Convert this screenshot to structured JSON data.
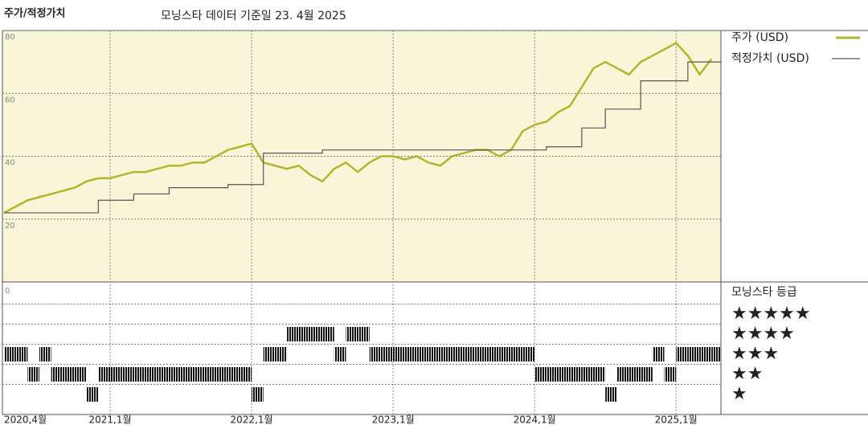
{
  "chart_data": [
    {
      "type": "line",
      "title": "주가/적정가치",
      "subtitle": "모닝스타 데이터 기준일 23. 4월 2025",
      "x": [
        "2020-04",
        "2020-05",
        "2020-06",
        "2020-07",
        "2020-08",
        "2020-09",
        "2020-10",
        "2020-11",
        "2020-12",
        "2021-01",
        "2021-02",
        "2021-03",
        "2021-04",
        "2021-05",
        "2021-06",
        "2021-07",
        "2021-08",
        "2021-09",
        "2021-10",
        "2021-11",
        "2021-12",
        "2022-01",
        "2022-02",
        "2022-03",
        "2022-04",
        "2022-05",
        "2022-06",
        "2022-07",
        "2022-08",
        "2022-09",
        "2022-10",
        "2022-11",
        "2022-12",
        "2023-01",
        "2023-02",
        "2023-03",
        "2023-04",
        "2023-05",
        "2023-06",
        "2023-07",
        "2023-08",
        "2023-09",
        "2023-10",
        "2023-11",
        "2023-12",
        "2024-01",
        "2024-02",
        "2024-03",
        "2024-04",
        "2024-05",
        "2024-06",
        "2024-07",
        "2024-08",
        "2024-09",
        "2024-10",
        "2024-11",
        "2024-12",
        "2025-01",
        "2025-02",
        "2025-03",
        "2025-04"
      ],
      "series": [
        {
          "name": "주가 (USD)",
          "color": "#b3b62c",
          "values": [
            22,
            24,
            26,
            27,
            28,
            29,
            30,
            32,
            33,
            33,
            34,
            35,
            35,
            36,
            37,
            37,
            38,
            38,
            40,
            42,
            43,
            44,
            38,
            37,
            36,
            37,
            34,
            32,
            36,
            38,
            35,
            38,
            40,
            40,
            39,
            40,
            38,
            37,
            40,
            41,
            42,
            42,
            40,
            42,
            48,
            50,
            51,
            54,
            56,
            62,
            68,
            70,
            68,
            66,
            70,
            72,
            74,
            76,
            72,
            66,
            71
          ]
        },
        {
          "name": "적정가치 (USD)",
          "color": "#555555",
          "values": [
            22,
            22,
            22,
            22,
            22,
            22,
            22,
            22,
            26,
            26,
            26,
            28,
            28,
            28,
            30,
            30,
            30,
            30,
            30,
            31,
            31,
            31,
            41,
            41,
            41,
            41,
            41,
            42,
            42,
            42,
            42,
            42,
            42,
            42,
            42,
            42,
            42,
            42,
            42,
            42,
            42,
            42,
            42,
            42,
            42,
            42,
            43,
            43,
            43,
            49,
            49,
            55,
            55,
            55,
            64,
            64,
            64,
            64,
            70,
            70,
            70
          ]
        }
      ],
      "ylim": [
        0,
        80
      ],
      "yticks": [
        20,
        40,
        60,
        80
      ],
      "xticks": [
        {
          "value": "2020-04",
          "label": "2020,4월"
        },
        {
          "value": "2021-01",
          "label": "2021,1월"
        },
        {
          "value": "2022-01",
          "label": "2022,1월"
        },
        {
          "value": "2023-01",
          "label": "2023,1월"
        },
        {
          "value": "2024-01",
          "label": "2024,1월"
        },
        {
          "value": "2025-01",
          "label": "2025,1월"
        }
      ],
      "grid": true,
      "background": "#f8f5d9"
    },
    {
      "type": "rating",
      "title": "모닝스타 등급",
      "levels": [
        "★",
        "★★",
        "★★★",
        "★★★★",
        "★★★★★"
      ],
      "values": [
        3,
        3,
        2,
        3,
        2,
        2,
        2,
        1,
        2,
        2,
        2,
        2,
        2,
        2,
        2,
        2,
        2,
        2,
        2,
        2,
        2,
        1,
        3,
        3,
        4,
        4,
        4,
        4,
        3,
        4,
        4,
        3,
        3,
        3,
        3,
        3,
        3,
        3,
        3,
        3,
        3,
        3,
        3,
        3,
        3,
        2,
        2,
        2,
        2,
        2,
        2,
        1,
        2,
        2,
        2,
        3,
        2,
        3,
        3,
        3,
        3
      ],
      "yticks": [
        0
      ],
      "color": "#111111"
    }
  ]
}
